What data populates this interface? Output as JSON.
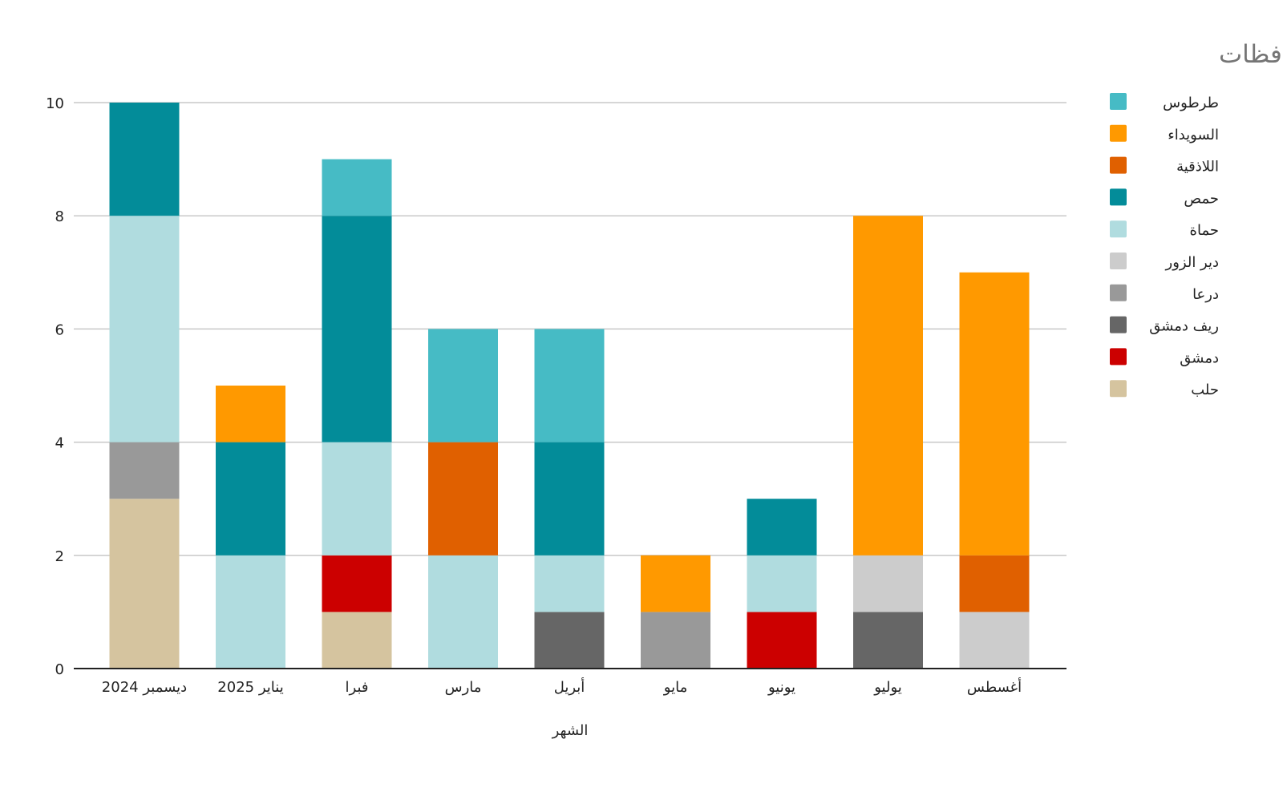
{
  "chart_data": {
    "type": "bar",
    "stacked": true,
    "title": "توزع الاعتداءات شهريا على الأماكن الدينية بحسب المحافظات",
    "xlabel": "الشهر",
    "ylabel": "",
    "ylim": [
      0,
      10
    ],
    "yticks": [
      0,
      2,
      4,
      6,
      8,
      10
    ],
    "grid": true,
    "legend_position": "right",
    "categories": [
      "ديسمبر 2024",
      "يناير 2025",
      "فبرا",
      "مارس",
      "أبريل",
      "مايو",
      "يونيو",
      "يوليو",
      "أغسطس"
    ],
    "series": [
      {
        "name": "حلب",
        "color": "#d5c49f",
        "values": [
          3,
          0,
          1,
          0,
          0,
          0,
          0,
          0,
          0
        ]
      },
      {
        "name": "دمشق",
        "color": "#cc0000",
        "values": [
          0,
          0,
          1,
          0,
          0,
          0,
          1,
          0,
          0
        ]
      },
      {
        "name": "ريف دمشق",
        "color": "#666666",
        "values": [
          0,
          0,
          0,
          0,
          1,
          0,
          0,
          1,
          0
        ]
      },
      {
        "name": "درعا",
        "color": "#999999",
        "values": [
          1,
          0,
          0,
          0,
          0,
          1,
          0,
          0,
          0
        ]
      },
      {
        "name": "دير الزور",
        "color": "#cccccc",
        "values": [
          0,
          0,
          0,
          0,
          0,
          0,
          0,
          1,
          1
        ]
      },
      {
        "name": "حماة",
        "color": "#b0dcdf",
        "values": [
          4,
          2,
          2,
          2,
          1,
          0,
          1,
          0,
          0
        ]
      },
      {
        "name": "حمص",
        "color": "#038c99",
        "values": [
          2,
          2,
          4,
          0,
          2,
          0,
          1,
          0,
          0
        ]
      },
      {
        "name": "اللاذقية",
        "color": "#e06000",
        "values": [
          0,
          0,
          0,
          2,
          0,
          0,
          0,
          0,
          1
        ]
      },
      {
        "name": "السويداء",
        "color": "#ff9900",
        "values": [
          0,
          1,
          0,
          0,
          0,
          1,
          0,
          6,
          5
        ]
      },
      {
        "name": "طرطوس",
        "color": "#46bbc5",
        "values": [
          0,
          0,
          1,
          2,
          2,
          0,
          0,
          0,
          0
        ]
      }
    ]
  }
}
